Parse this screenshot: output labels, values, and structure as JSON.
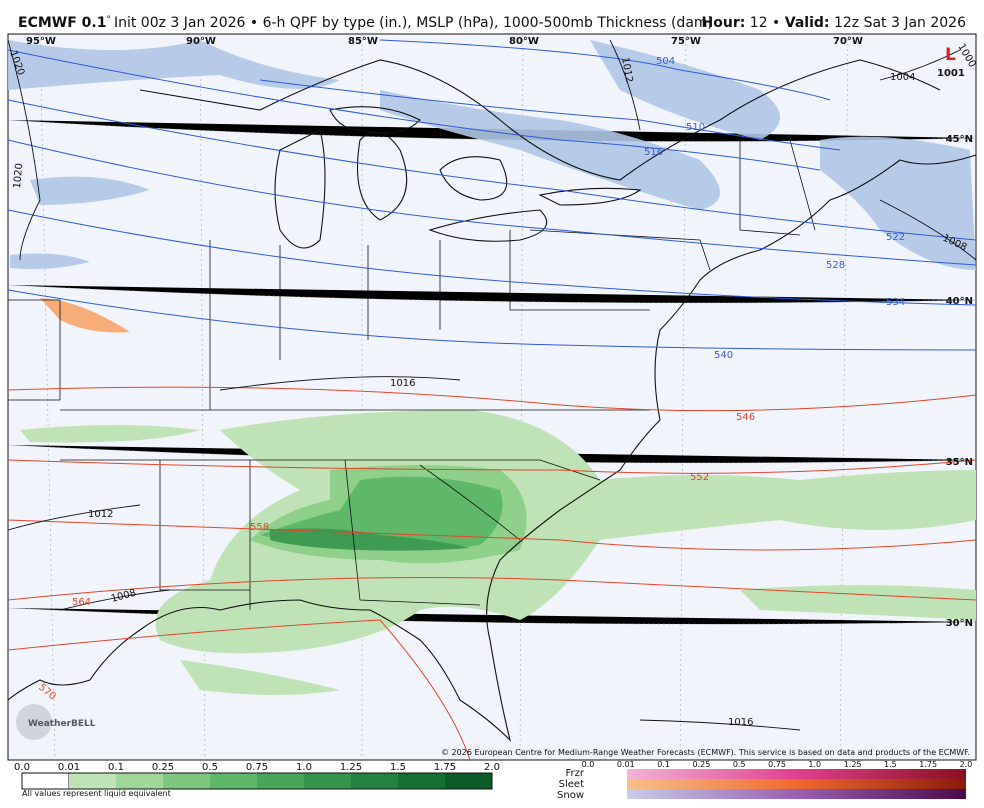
{
  "header": {
    "model": "ECMWF 0.1",
    "degree": "°",
    "description": "Init 00z 3 Jan 2026 • 6-h QPF by type (in.), MSLP (hPa), 1000-500mb Thickness (dam)",
    "hour_label": "Hour:",
    "hour": "12 •",
    "valid_label": "Valid:",
    "valid": "12z Sat 3 Jan 2026"
  },
  "map": {
    "longitude_labels": [
      "95°W",
      "90°W",
      "85°W",
      "80°W",
      "75°W",
      "70°W"
    ],
    "latitude_labels": [
      "45°N",
      "40°N",
      "35°N",
      "30°N"
    ],
    "thickness_labels": [
      "504",
      "510",
      "516",
      "522",
      "528",
      "534",
      "540",
      "546",
      "552",
      "558",
      "564",
      "570"
    ],
    "pressure_labels": [
      "1020",
      "1012",
      "1004",
      "1000",
      "1020",
      "1008",
      "1016",
      "1012",
      "1008",
      "1016"
    ],
    "low": {
      "symbol": "L",
      "pressure": "1001"
    },
    "copyright": "© 2026 European Centre for Medium-Range Weather Forecasts (ECMWF). This service is based on data and products of the ECMWF.",
    "logo": "WeatherBELL"
  },
  "legend": {
    "rain_ticks": [
      "0.0",
      "0.01",
      "0.1",
      "0.25",
      "0.5",
      "0.75",
      "1.0",
      "1.25",
      "1.5",
      "1.75",
      "2.0"
    ],
    "note": "All values represent liquid equivalent",
    "types": [
      "Frzr",
      "Sleet",
      "Snow"
    ],
    "mixed_ticks": [
      "0.0",
      "0.01",
      "0.1",
      "0.25",
      "0.5",
      "0.75",
      "1.0",
      "1.25",
      "1.5",
      "1.75",
      "2.0"
    ]
  }
}
